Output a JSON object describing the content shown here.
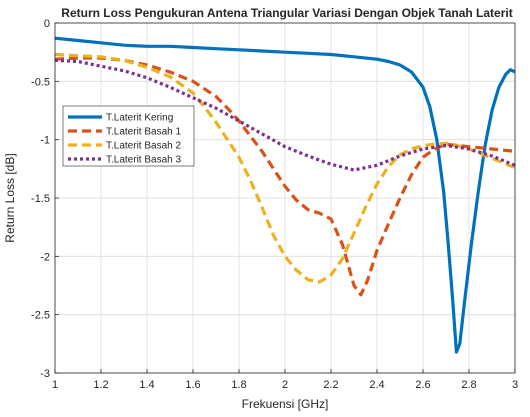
{
  "chart_data": {
    "type": "line",
    "title": "Return Loss Pengukuran Antena Triangular Variasi Dengan Objek Tanah Laterit",
    "xlabel": "Frekuensi [GHz]",
    "ylabel": "Return Loss [dB]",
    "xlim": [
      1,
      3
    ],
    "ylim": [
      -3,
      0
    ],
    "xticks": [
      1,
      1.2,
      1.4,
      1.6,
      1.8,
      2,
      2.2,
      2.4,
      2.6,
      2.8,
      3
    ],
    "xtick_labels": [
      "1",
      "1.2",
      "1.4",
      "1.6",
      "1.8",
      "2",
      "2.2",
      "2.4",
      "2.6",
      "2.8",
      "3"
    ],
    "yticks": [
      0,
      -0.5,
      -1,
      -1.5,
      -2,
      -2.5,
      -3
    ],
    "ytick_labels": [
      "0",
      "-0.5",
      "-1",
      "-1.5",
      "-2",
      "-2.5",
      "-3"
    ],
    "grid": true,
    "legend_position": "middle-left",
    "series": [
      {
        "name": "T.Laterit Kering",
        "color": "#0072BD",
        "style": "solid",
        "x": [
          1,
          1.1,
          1.2,
          1.3,
          1.4,
          1.5,
          1.6,
          1.7,
          1.8,
          1.9,
          2,
          2.1,
          2.2,
          2.3,
          2.4,
          2.45,
          2.5,
          2.55,
          2.6,
          2.63,
          2.66,
          2.69,
          2.71,
          2.73,
          2.745,
          2.76,
          2.78,
          2.81,
          2.84,
          2.87,
          2.9,
          2.93,
          2.96,
          2.98,
          3
        ],
        "y": [
          -0.13,
          -0.15,
          -0.17,
          -0.19,
          -0.2,
          -0.2,
          -0.21,
          -0.22,
          -0.23,
          -0.24,
          -0.25,
          -0.26,
          -0.27,
          -0.29,
          -0.31,
          -0.33,
          -0.36,
          -0.42,
          -0.55,
          -0.72,
          -1.0,
          -1.45,
          -1.9,
          -2.4,
          -2.82,
          -2.75,
          -2.4,
          -1.9,
          -1.45,
          -1.05,
          -0.75,
          -0.55,
          -0.44,
          -0.4,
          -0.42
        ]
      },
      {
        "name": "T.Laterit Basah 1",
        "color": "#D95319",
        "style": "dashed",
        "x": [
          1,
          1.1,
          1.2,
          1.3,
          1.4,
          1.5,
          1.6,
          1.7,
          1.75,
          1.8,
          1.85,
          1.9,
          1.95,
          2.0,
          2.05,
          2.1,
          2.15,
          2.2,
          2.25,
          2.3,
          2.33,
          2.36,
          2.4,
          2.45,
          2.5,
          2.55,
          2.6,
          2.65,
          2.7,
          2.75,
          2.8,
          2.85,
          2.9,
          2.95,
          3
        ],
        "y": [
          -0.31,
          -0.3,
          -0.3,
          -0.32,
          -0.36,
          -0.42,
          -0.5,
          -0.63,
          -0.73,
          -0.84,
          -0.97,
          -1.1,
          -1.25,
          -1.4,
          -1.52,
          -1.6,
          -1.63,
          -1.68,
          -1.9,
          -2.25,
          -2.33,
          -2.2,
          -1.95,
          -1.72,
          -1.5,
          -1.3,
          -1.15,
          -1.08,
          -1.04,
          -1.05,
          -1.06,
          -1.07,
          -1.08,
          -1.09,
          -1.1
        ]
      },
      {
        "name": "T.Laterit Basah 2",
        "color": "#EDB120",
        "style": "dashed",
        "x": [
          1,
          1.1,
          1.2,
          1.3,
          1.4,
          1.5,
          1.6,
          1.65,
          1.7,
          1.75,
          1.8,
          1.85,
          1.9,
          1.95,
          2.0,
          2.05,
          2.1,
          2.15,
          2.2,
          2.25,
          2.3,
          2.35,
          2.4,
          2.45,
          2.5,
          2.55,
          2.6,
          2.65,
          2.7,
          2.75,
          2.8,
          2.85,
          2.9,
          2.95,
          3
        ],
        "y": [
          -0.27,
          -0.28,
          -0.29,
          -0.32,
          -0.38,
          -0.46,
          -0.6,
          -0.72,
          -0.85,
          -1.0,
          -1.15,
          -1.35,
          -1.58,
          -1.82,
          -2.0,
          -2.12,
          -2.2,
          -2.22,
          -2.16,
          -2.02,
          -1.8,
          -1.58,
          -1.38,
          -1.23,
          -1.13,
          -1.08,
          -1.05,
          -1.04,
          -1.03,
          -1.05,
          -1.08,
          -1.12,
          -1.16,
          -1.2,
          -1.24
        ]
      },
      {
        "name": "T.Laterit Basah 3",
        "color": "#7E2F8E",
        "style": "dotted",
        "x": [
          1,
          1.1,
          1.2,
          1.3,
          1.4,
          1.5,
          1.6,
          1.7,
          1.8,
          1.9,
          2,
          2.1,
          2.2,
          2.3,
          2.4,
          2.5,
          2.6,
          2.7,
          2.8,
          2.9,
          3
        ],
        "y": [
          -0.32,
          -0.33,
          -0.37,
          -0.41,
          -0.47,
          -0.55,
          -0.64,
          -0.73,
          -0.84,
          -0.95,
          -1.06,
          -1.14,
          -1.21,
          -1.26,
          -1.22,
          -1.14,
          -1.08,
          -1.05,
          -1.08,
          -1.14,
          -1.22
        ]
      }
    ]
  }
}
